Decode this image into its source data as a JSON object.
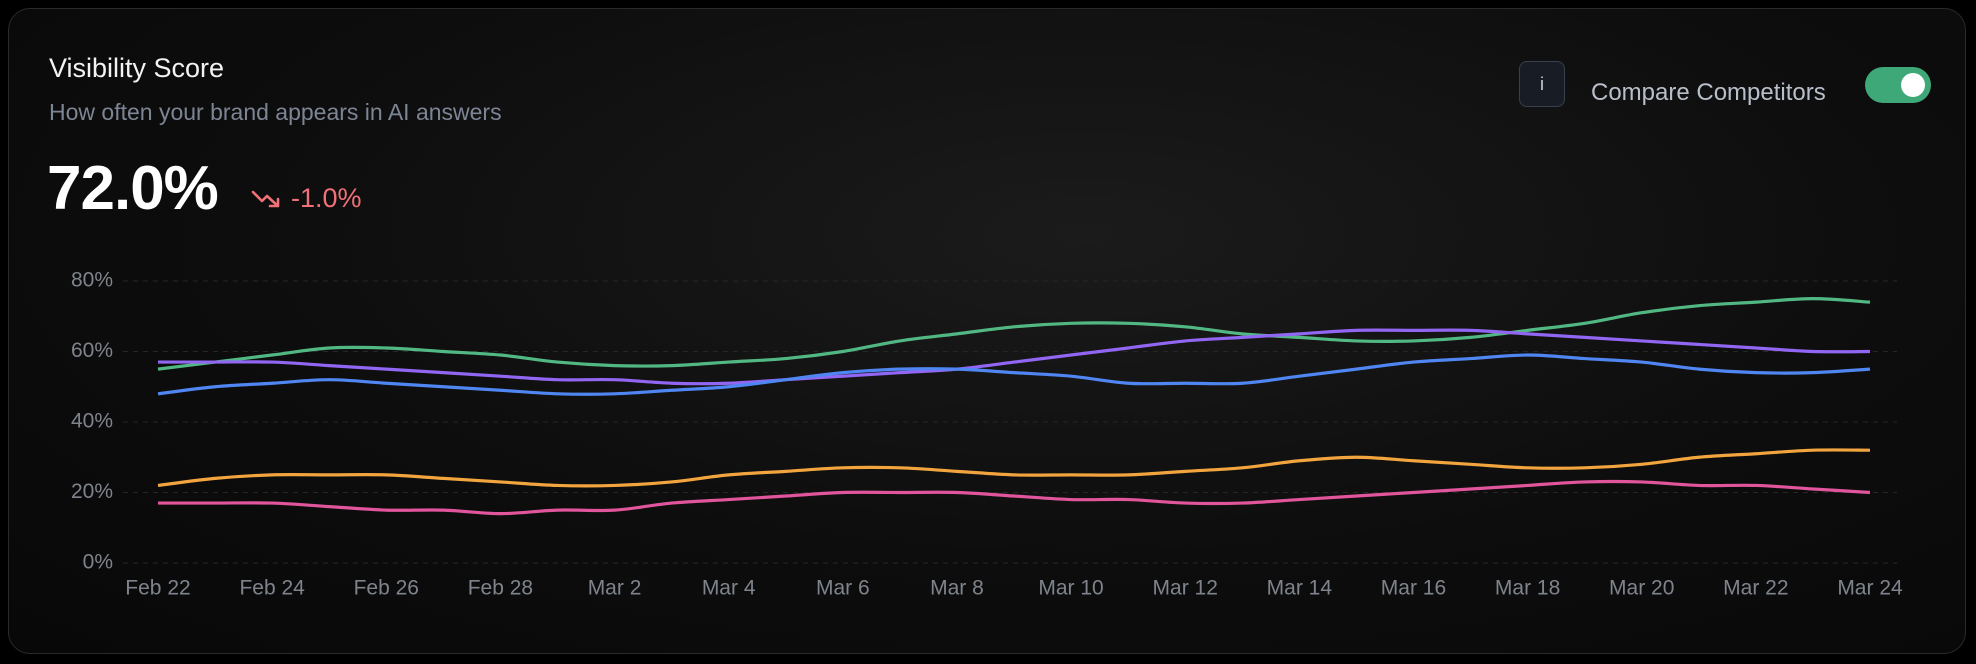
{
  "header": {
    "title": "Visibility Score",
    "subtitle": "How often your brand appears in AI answers",
    "value": "72.0%",
    "change": "-1.0%",
    "info": "i",
    "compare": "Compare Competitors"
  },
  "chart_data": {
    "type": "line",
    "categories": [
      "Feb 22",
      null,
      "Feb 24",
      null,
      "Feb 26",
      null,
      "Feb 28",
      null,
      "Mar 2",
      null,
      "Mar 4",
      null,
      "Mar 6",
      null,
      "Mar 8",
      null,
      "Mar 10",
      null,
      "Mar 12",
      null,
      "Mar 14",
      null,
      "Mar 16",
      null,
      "Mar 18",
      null,
      "Mar 20",
      null,
      "Mar 22",
      null,
      "Mar 24"
    ],
    "ylim": [
      0,
      80
    ],
    "yticks": [
      {
        "value": 0,
        "label": "0%"
      },
      {
        "value": 20,
        "label": "20%"
      },
      {
        "value": 40,
        "label": "40%"
      },
      {
        "value": 60,
        "label": "60%"
      },
      {
        "value": 80,
        "label": "80%"
      }
    ],
    "grid": true,
    "series": [
      {
        "color": "#52b883",
        "values": [
          55,
          57,
          59,
          61,
          61,
          60,
          59,
          57,
          56,
          56,
          57,
          58,
          60,
          63,
          65,
          67,
          68,
          68,
          67,
          65,
          64,
          63,
          63,
          64,
          66,
          68,
          71,
          73,
          74,
          75,
          74
        ]
      },
      {
        "color": "#9166f2",
        "values": [
          57,
          57,
          57,
          56,
          55,
          54,
          53,
          52,
          52,
          51,
          51,
          52,
          53,
          54,
          55,
          57,
          59,
          61,
          63,
          64,
          65,
          66,
          66,
          66,
          65,
          64,
          63,
          62,
          61,
          60,
          60
        ]
      },
      {
        "color": "#4f86f2",
        "values": [
          48,
          50,
          51,
          52,
          51,
          50,
          49,
          48,
          48,
          49,
          50,
          52,
          54,
          55,
          55,
          54,
          53,
          51,
          51,
          51,
          53,
          55,
          57,
          58,
          59,
          58,
          57,
          55,
          54,
          54,
          55
        ]
      },
      {
        "color": "#f2a43e",
        "values": [
          22,
          24,
          25,
          25,
          25,
          24,
          23,
          22,
          22,
          23,
          25,
          26,
          27,
          27,
          26,
          25,
          25,
          25,
          26,
          27,
          29,
          30,
          29,
          28,
          27,
          27,
          28,
          30,
          31,
          32,
          32
        ]
      },
      {
        "color": "#e0559b",
        "values": [
          17,
          17,
          17,
          16,
          15,
          15,
          14,
          15,
          15,
          17,
          18,
          19,
          20,
          20,
          20,
          19,
          18,
          18,
          17,
          17,
          18,
          19,
          20,
          21,
          22,
          23,
          23,
          22,
          22,
          21,
          20
        ]
      }
    ]
  }
}
